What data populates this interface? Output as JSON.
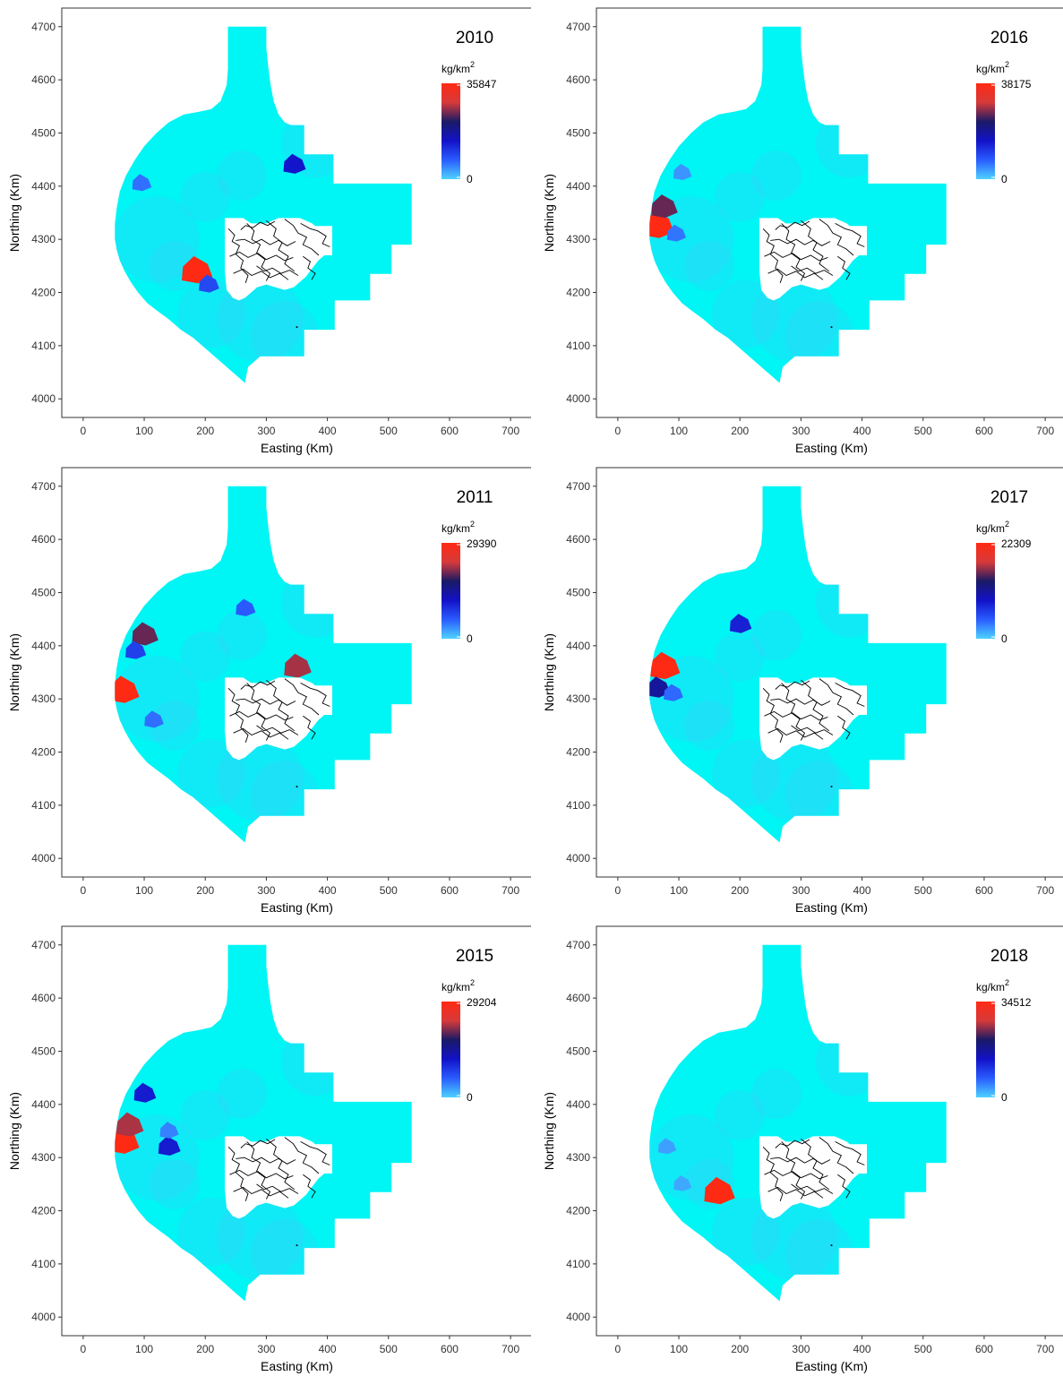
{
  "figure": {
    "legend_unit_base": "kg/km",
    "legend_unit_exp": "2",
    "colors": {
      "background_region": "#00f5f5",
      "scale": [
        "#4dd2ff",
        "#2a5cff",
        "#1212c8",
        "#1a1a66",
        "#d63a3a",
        "#ff2a14"
      ],
      "island_fill": "#ffffff",
      "island_stroke": "#000000"
    }
  },
  "chart_data": [
    {
      "type": "heatmap",
      "title": "2010",
      "xlabel": "Easting (Km)",
      "ylabel": "Northing (Km)",
      "xlim": [
        -35,
        735
      ],
      "ylim": [
        3965,
        4735
      ],
      "xticks": [
        0,
        100,
        200,
        300,
        400,
        500,
        600,
        700
      ],
      "yticks": [
        4000,
        4100,
        4200,
        4300,
        4400,
        4500,
        4600,
        4700
      ],
      "legend": {
        "title": "kg/km2",
        "min": 0,
        "max": 35847,
        "min_label": "0",
        "max_label": "35847"
      },
      "hotspots": [
        {
          "easting": 185,
          "northing": 4240,
          "value": 35847
        },
        {
          "easting": 345,
          "northing": 4440,
          "value": 14000
        },
        {
          "easting": 205,
          "northing": 4215,
          "value": 9000
        },
        {
          "easting": 95,
          "northing": 4405,
          "value": 6000
        }
      ]
    },
    {
      "type": "heatmap",
      "title": "2016",
      "xlabel": "Easting (Km)",
      "ylabel": "Northing (Km)",
      "xlim": [
        -35,
        735
      ],
      "ylim": [
        3965,
        4735
      ],
      "xticks": [
        0,
        100,
        200,
        300,
        400,
        500,
        600,
        700
      ],
      "yticks": [
        4000,
        4100,
        4200,
        4300,
        4400,
        4500,
        4600,
        4700
      ],
      "legend": {
        "title": "kg/km2",
        "min": 0,
        "max": 38175,
        "min_label": "0",
        "max_label": "38175"
      },
      "hotspots": [
        {
          "easting": 65,
          "northing": 4325,
          "value": 38175
        },
        {
          "easting": 75,
          "northing": 4360,
          "value": 26000
        },
        {
          "easting": 95,
          "northing": 4310,
          "value": 6000
        },
        {
          "easting": 105,
          "northing": 4425,
          "value": 4000
        }
      ]
    },
    {
      "type": "heatmap",
      "title": "2011",
      "xlabel": "Easting (Km)",
      "ylabel": "Northing (Km)",
      "xlim": [
        -35,
        735
      ],
      "ylim": [
        3965,
        4735
      ],
      "xticks": [
        0,
        100,
        200,
        300,
        400,
        500,
        600,
        700
      ],
      "yticks": [
        4000,
        4100,
        4200,
        4300,
        4400,
        4500,
        4600,
        4700
      ],
      "legend": {
        "title": "kg/km2",
        "min": 0,
        "max": 29390,
        "min_label": "0",
        "max_label": "29390"
      },
      "hotspots": [
        {
          "easting": 350,
          "northing": 4360,
          "value": 22000
        },
        {
          "easting": 65,
          "northing": 4315,
          "value": 29390
        },
        {
          "easting": 100,
          "northing": 4420,
          "value": 20000
        },
        {
          "easting": 85,
          "northing": 4390,
          "value": 8000
        },
        {
          "easting": 265,
          "northing": 4470,
          "value": 6000
        },
        {
          "easting": 115,
          "northing": 4260,
          "value": 5000
        }
      ]
    },
    {
      "type": "heatmap",
      "title": "2017",
      "xlabel": "Easting (Km)",
      "ylabel": "Northing (Km)",
      "xlim": [
        -35,
        735
      ],
      "ylim": [
        3965,
        4735
      ],
      "xticks": [
        0,
        100,
        200,
        300,
        400,
        500,
        600,
        700
      ],
      "yticks": [
        4000,
        4100,
        4200,
        4300,
        4400,
        4500,
        4600,
        4700
      ],
      "legend": {
        "title": "kg/km2",
        "min": 0,
        "max": 22309,
        "min_label": "0",
        "max_label": "22309"
      },
      "hotspots": [
        {
          "easting": 75,
          "northing": 4360,
          "value": 22309
        },
        {
          "easting": 65,
          "northing": 4320,
          "value": 11000
        },
        {
          "easting": 200,
          "northing": 4440,
          "value": 8000
        },
        {
          "easting": 90,
          "northing": 4310,
          "value": 4000
        }
      ]
    },
    {
      "type": "heatmap",
      "title": "2015",
      "xlabel": "Easting (Km)",
      "ylabel": "Northing (Km)",
      "xlim": [
        -35,
        735
      ],
      "ylim": [
        3965,
        4735
      ],
      "xticks": [
        0,
        100,
        200,
        300,
        400,
        500,
        600,
        700
      ],
      "yticks": [
        4000,
        4100,
        4200,
        4300,
        4400,
        4500,
        4600,
        4700
      ],
      "legend": {
        "title": "kg/km2",
        "min": 0,
        "max": 29204,
        "min_label": "0",
        "max_label": "29204"
      },
      "hotspots": [
        {
          "easting": 65,
          "northing": 4330,
          "value": 29204
        },
        {
          "easting": 75,
          "northing": 4360,
          "value": 22000
        },
        {
          "easting": 100,
          "northing": 4420,
          "value": 11000
        },
        {
          "easting": 140,
          "northing": 4320,
          "value": 11000
        },
        {
          "easting": 140,
          "northing": 4350,
          "value": 4000
        }
      ]
    },
    {
      "type": "heatmap",
      "title": "2018",
      "xlabel": "Easting (Km)",
      "ylabel": "Northing (Km)",
      "xlim": [
        -35,
        735
      ],
      "ylim": [
        3965,
        4735
      ],
      "xticks": [
        0,
        100,
        200,
        300,
        400,
        500,
        600,
        700
      ],
      "yticks": [
        4000,
        4100,
        4200,
        4300,
        4400,
        4500,
        4600,
        4700
      ],
      "legend": {
        "title": "kg/km2",
        "min": 0,
        "max": 34512,
        "min_label": "0",
        "max_label": "34512"
      },
      "hotspots": [
        {
          "easting": 165,
          "northing": 4235,
          "value": 34512
        },
        {
          "easting": 80,
          "northing": 4320,
          "value": 3000
        },
        {
          "easting": 105,
          "northing": 4250,
          "value": 2500
        }
      ]
    }
  ]
}
